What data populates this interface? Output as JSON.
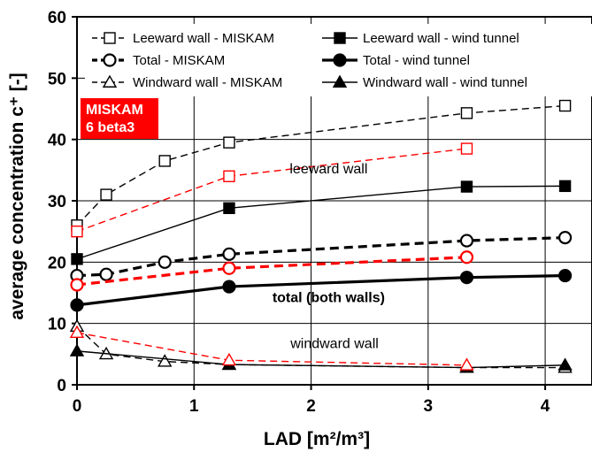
{
  "chart_data": {
    "type": "line",
    "xlabel": "LAD [m²/m³]",
    "ylabel": "average concentration c⁺ [-]",
    "xlim": [
      0,
      4.4
    ],
    "ylim": [
      0,
      60
    ],
    "xticks": [
      0,
      1,
      2,
      3,
      4
    ],
    "yticks": [
      0,
      10,
      20,
      30,
      40,
      50,
      60
    ],
    "grid": true,
    "legend_position": "top",
    "series": [
      {
        "name": "Leeward wall - MISKAM",
        "color": "#000000",
        "dash": "dashed",
        "width": "thin",
        "marker": "square",
        "filled": false,
        "x": [
          0,
          0.25,
          0.75,
          1.3,
          3.33,
          4.17
        ],
        "y": [
          26,
          31,
          36.5,
          39.5,
          44.3,
          45.5
        ]
      },
      {
        "name": "Leeward wall - wind tunnel",
        "color": "#000000",
        "dash": "solid",
        "width": "thin",
        "marker": "square",
        "filled": true,
        "x": [
          0,
          1.3,
          3.33,
          4.17
        ],
        "y": [
          20.5,
          28.8,
          32.3,
          32.4
        ]
      },
      {
        "name": "Total - MISKAM",
        "color": "#000000",
        "dash": "dashed",
        "width": "thick",
        "marker": "circle",
        "filled": false,
        "x": [
          0,
          0.25,
          0.75,
          1.3,
          3.33,
          4.17
        ],
        "y": [
          17.8,
          18,
          20,
          21.3,
          23.5,
          24
        ]
      },
      {
        "name": "Total - wind tunnel",
        "color": "#000000",
        "dash": "solid",
        "width": "thick",
        "marker": "circle",
        "filled": true,
        "x": [
          0,
          1.3,
          3.33,
          4.17
        ],
        "y": [
          13,
          16,
          17.5,
          17.8
        ]
      },
      {
        "name": "Windward wall - MISKAM",
        "color": "#000000",
        "dash": "dashed",
        "width": "thin",
        "marker": "triangle",
        "filled": false,
        "x": [
          0,
          0.25,
          0.75,
          1.3,
          3.33,
          4.17
        ],
        "y": [
          9.5,
          5,
          3.8,
          3.3,
          2.8,
          2.8
        ]
      },
      {
        "name": "Windward wall - wind tunnel",
        "color": "#000000",
        "dash": "solid",
        "width": "thin",
        "marker": "triangle",
        "filled": true,
        "x": [
          0,
          1.3,
          3.33,
          4.17
        ],
        "y": [
          5.5,
          3.3,
          2.8,
          3.2
        ]
      },
      {
        "name": "",
        "color": "#ff0000",
        "dash": "dashed",
        "width": "thin",
        "marker": "square",
        "filled": false,
        "x": [
          0,
          1.3,
          3.33
        ],
        "y": [
          25,
          34,
          38.5
        ]
      },
      {
        "name": "",
        "color": "#ff0000",
        "dash": "dashed",
        "width": "thick",
        "marker": "circle",
        "filled": false,
        "x": [
          0,
          1.3,
          3.33
        ],
        "y": [
          16.3,
          19,
          20.8
        ]
      },
      {
        "name": "",
        "color": "#ff0000",
        "dash": "dashed",
        "width": "thin",
        "marker": "triangle",
        "filled": false,
        "x": [
          0,
          1.3,
          3.33
        ],
        "y": [
          8.5,
          4,
          3.2
        ]
      }
    ],
    "annotations": [
      {
        "text": "leeward wall",
        "x": 2.15,
        "y": 34.5,
        "bold": false
      },
      {
        "text": "total (both walls)",
        "x": 2.15,
        "y": 13.5,
        "bold": true
      },
      {
        "text": "windward wall",
        "x": 2.2,
        "y": 6,
        "bold": false
      }
    ],
    "badge": {
      "lines": [
        "MISKAM",
        "6 beta3"
      ],
      "color": "#ff0000",
      "text_color": "#ffffff"
    }
  }
}
